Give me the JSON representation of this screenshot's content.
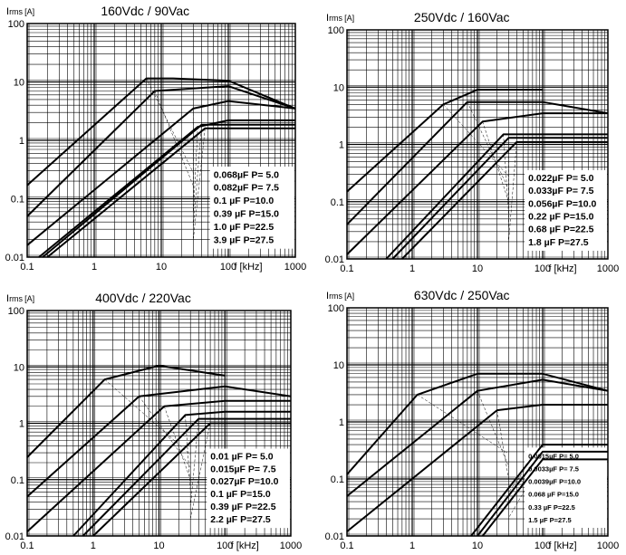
{
  "chart_data": [
    {
      "type": "line",
      "title": "160Vdc / 90Vac",
      "ylabel": {
        "main": "I",
        "sub": "rms",
        "unit": "[A]"
      },
      "xlabel": "f [kHz]",
      "xscale": "log",
      "yscale": "log",
      "xlim": [
        0.1,
        1000
      ],
      "ylim": [
        0.01,
        100
      ],
      "x_ticks": [
        "0.1",
        "1",
        "10",
        "100",
        "1000"
      ],
      "y_ticks": [
        "0.01",
        "0.1",
        "1",
        "10",
        "100"
      ],
      "legend": [
        "0.068µF P= 5.0",
        "0.082µF P= 7.5",
        "0.1    µF P=10.0",
        "0.39  µF P=15.0",
        "1.0    µF P=22.5",
        "3.9    µF P=27.5"
      ],
      "series": [
        {
          "name": "3.9 µF P=27.5",
          "x": [
            0.1,
            6,
            15,
            100,
            1000
          ],
          "y": [
            0.17,
            11.5,
            11.5,
            10.5,
            3.5
          ]
        },
        {
          "name": "1.0 µF P=22.5",
          "x": [
            0.1,
            8,
            100,
            1000
          ],
          "y": [
            0.05,
            7,
            8.5,
            3.5
          ]
        },
        {
          "name": "0.39 µF P=15.0",
          "x": [
            0.1,
            30,
            100,
            1000
          ],
          "y": [
            0.016,
            3.5,
            4.7,
            3.5
          ]
        },
        {
          "name": "0.1 µF P=10.0",
          "x": [
            0.15,
            35,
            100,
            1000
          ],
          "y": [
            0.01,
            1.7,
            2.2,
            2.2
          ]
        },
        {
          "name": "0.082 µF P=7.5",
          "x": [
            0.17,
            40,
            1000
          ],
          "y": [
            0.01,
            1.85,
            1.85
          ]
        },
        {
          "name": "0.068 µF P=5.0",
          "x": [
            0.2,
            45,
            1000
          ],
          "y": [
            0.01,
            1.6,
            1.6
          ]
        }
      ]
    },
    {
      "type": "line",
      "title": "250Vdc / 160Vac",
      "ylabel": {
        "main": "I",
        "sub": "rms",
        "unit": "[A]"
      },
      "xlabel": "f [kHz]",
      "xscale": "log",
      "yscale": "log",
      "xlim": [
        0.1,
        1000
      ],
      "ylim": [
        0.01,
        100
      ],
      "x_ticks": [
        "0.1",
        "1",
        "10",
        "100",
        "1000"
      ],
      "y_ticks": [
        "0.01",
        "0.1",
        "1",
        "10",
        "100"
      ],
      "legend": [
        "0.022µF P= 5.0",
        "0.033µF P= 7.5",
        "0.056µF P=10.0",
        "0.22  µF P=15.0",
        "0.68  µF P=22.5",
        "1.8    µF P=27.5"
      ],
      "series": [
        {
          "name": "1.8 µF P=27.5",
          "x": [
            0.1,
            3,
            10,
            100
          ],
          "y": [
            0.15,
            5,
            9,
            9
          ]
        },
        {
          "name": "0.68 µF P=22.5",
          "x": [
            0.1,
            7,
            100,
            1000
          ],
          "y": [
            0.04,
            5.5,
            5.5,
            3.5
          ]
        },
        {
          "name": "0.22 µF P=15.0",
          "x": [
            0.1,
            12,
            100,
            1000
          ],
          "y": [
            0.012,
            2.5,
            3.5,
            3.5
          ]
        },
        {
          "name": "0.056 µF P=10.0",
          "x": [
            0.4,
            25,
            1000
          ],
          "y": [
            0.01,
            1.5,
            1.5
          ]
        },
        {
          "name": "0.033 µF P=7.5",
          "x": [
            0.5,
            30,
            1000
          ],
          "y": [
            0.01,
            1.3,
            1.3
          ]
        },
        {
          "name": "0.022 µF P=5.0",
          "x": [
            0.7,
            40,
            1000
          ],
          "y": [
            0.01,
            1.1,
            1.1
          ]
        }
      ]
    },
    {
      "type": "line",
      "title": "400Vdc / 220Vac",
      "ylabel": {
        "main": "I",
        "sub": "rms",
        "unit": "[A]"
      },
      "xlabel": "f [kHz]",
      "xscale": "log",
      "yscale": "log",
      "xlim": [
        0.1,
        1000
      ],
      "ylim": [
        0.01,
        100
      ],
      "x_ticks": [
        "0.1",
        "1",
        "10",
        "100",
        "1000"
      ],
      "y_ticks": [
        "0.01",
        "0.1",
        "1",
        "10",
        "100"
      ],
      "legend": [
        "0.01  µF P= 5.0",
        "0.015µF P= 7.5",
        "0.027µF P=10.0",
        "0.1    µF P=15.0",
        "0.39  µF P=22.5",
        "2.2    µF P=27.5"
      ],
      "series": [
        {
          "name": "2.2 µF P=27.5",
          "x": [
            0.1,
            1.5,
            10,
            100
          ],
          "y": [
            0.25,
            6,
            10.5,
            7
          ]
        },
        {
          "name": "0.39 µF P=22.5",
          "x": [
            0.1,
            5,
            100,
            1000
          ],
          "y": [
            0.05,
            3,
            4.5,
            3
          ]
        },
        {
          "name": "0.1 µF P=15.0",
          "x": [
            0.1,
            12,
            100,
            1000
          ],
          "y": [
            0.012,
            2,
            2.5,
            2.5
          ]
        },
        {
          "name": "0.027 µF P=10.0",
          "x": [
            0.5,
            25,
            100,
            1000
          ],
          "y": [
            0.01,
            1.4,
            1.6,
            1.6
          ]
        },
        {
          "name": "0.015 µF P=7.5",
          "x": [
            0.7,
            40,
            1000
          ],
          "y": [
            0.01,
            1.2,
            1.2
          ]
        },
        {
          "name": "0.01 µF P=5.0",
          "x": [
            1,
            60,
            1000
          ],
          "y": [
            0.01,
            1.0,
            1.0
          ]
        }
      ]
    },
    {
      "type": "line",
      "title": "630Vdc / 250Vac",
      "ylabel": {
        "main": "I",
        "sub": "rms",
        "unit": "[A]"
      },
      "xlabel": "f [kHz]",
      "xscale": "log",
      "yscale": "log",
      "xlim": [
        0.1,
        1000
      ],
      "ylim": [
        0.01,
        100
      ],
      "x_ticks": [
        "0.1",
        "1",
        "10",
        "100",
        "1000"
      ],
      "y_ticks": [
        "0.01",
        "0.1",
        "1",
        "10",
        "100"
      ],
      "legend": [
        "0.0015µF P= 5.0",
        "0.0033µF P= 7.5",
        "0.0039µF P=10.0",
        "0.068  µF P=15.0",
        "0.33    µF P=22.5",
        "1.5      µF P=27.5"
      ],
      "series": [
        {
          "name": "1.5 µF P=27.5",
          "x": [
            0.1,
            1.2,
            10,
            100,
            1000
          ],
          "y": [
            0.12,
            3,
            7,
            7,
            3.5
          ]
        },
        {
          "name": "0.33 µF P=22.5",
          "x": [
            0.1,
            10,
            100,
            1000
          ],
          "y": [
            0.05,
            3.5,
            5.5,
            3.5
          ]
        },
        {
          "name": "0.068 µF P=15.0",
          "x": [
            0.1,
            20,
            100,
            1000
          ],
          "y": [
            0.012,
            1.6,
            2,
            2
          ]
        },
        {
          "name": "0.0039 µF P=10.0",
          "x": [
            8,
            100,
            1000
          ],
          "y": [
            0.01,
            0.4,
            0.4
          ]
        },
        {
          "name": "0.0033 µF P=7.5",
          "x": [
            10,
            100,
            1000
          ],
          "y": [
            0.01,
            0.3,
            0.3
          ]
        },
        {
          "name": "0.0015 µF P=5.0",
          "x": [
            12,
            100,
            1000
          ],
          "y": [
            0.01,
            0.22,
            0.22
          ]
        }
      ]
    }
  ]
}
